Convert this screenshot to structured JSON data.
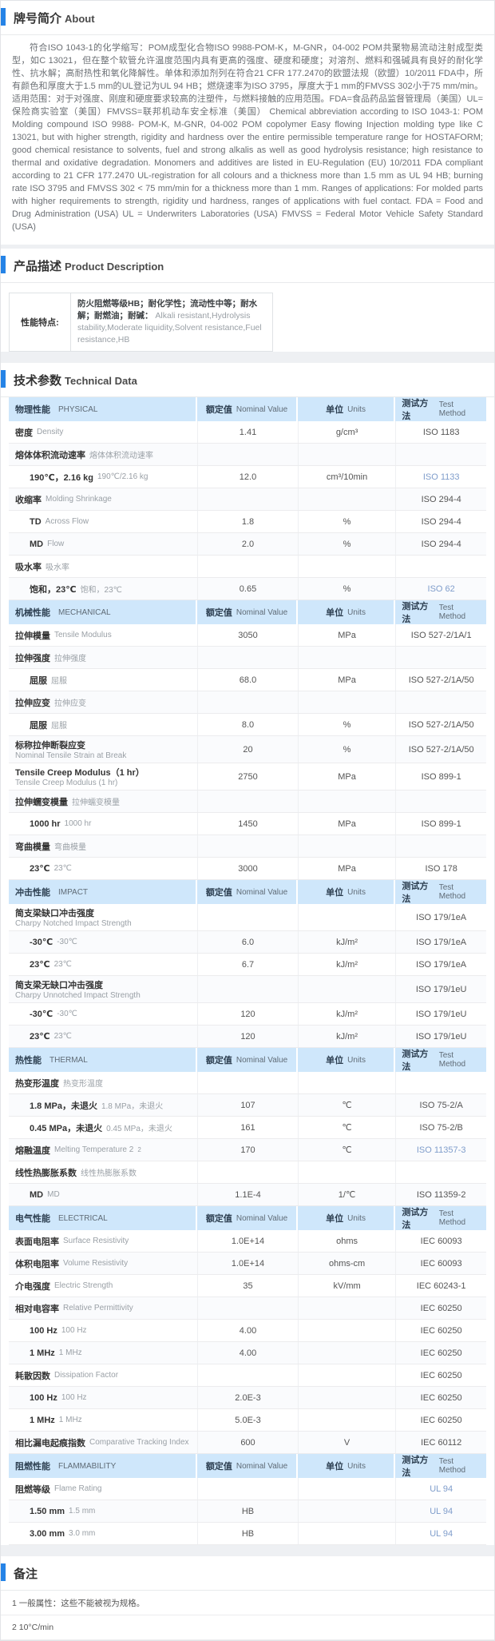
{
  "accent_color": "#2583e6",
  "table_header_bg": "#cfe7fb",
  "link_color": "#7f9dcb",
  "about": {
    "title_zh": "牌号简介",
    "title_en": "About",
    "paragraph": "符合ISO 1043-1的化学缩写：POM成型化合物ISO 9988-POM-K，M-GNR，04-002 POM共聚物易流动注射成型类型，如C 13021，但在整个软管允许温度范围内具有更高的强度、硬度和硬度；对溶剂、燃料和强碱具有良好的耐化学性、抗水解；高耐热性和氧化降解性。单体和添加剂列在符合21 CFR 177.2470的欧盟法规（欧盟）10/2011 FDA中，所有颜色和厚度大于1.5 mm的UL登记为UL 94 HB；燃烧速率为ISO 3795，厚度大于1 mm的FMVSS 302小于75 mm/min。适用范围：对于对强度、刚度和硬度要求较高的注塑件，与燃料接触的应用范围。FDA=食品药品监督管理局（美国）UL=保险商实验室（美国）FMVSS=联邦机动车安全标准（美国）  Chemical abbreviation according to ISO 1043-1: POM Molding compound ISO 9988- POM-K, M-GNR, 04-002 POM copolymer Easy flowing Injection molding type like C 13021, but with higher strength, rigidity and hardness over the entire permissible temperature range for HOSTAFORM; good chemical resistance to solvents, fuel and strong alkalis as well as good hydrolysis resistance; high resistance to thermal and oxidative degradation. Monomers and additives are listed in EU-Regulation (EU) 10/2011 FDA compliant according to 21 CFR 177.2470 UL-registration for all colours and a thickness more than 1.5 mm as UL 94 HB; burning rate ISO 3795 and FMVSS 302 < 75 mm/min for a thickness more than 1 mm. Ranges of applications: For molded parts with higher requirements to strength, rigidity und hardness, ranges of applications with fuel contact. FDA = Food and Drug Administration (USA) UL = Underwriters Laboratories (USA) FMVSS = Federal Motor Vehicle Safety Standard (USA)"
  },
  "product_description": {
    "title_zh": "产品描述",
    "title_en": "Product Description",
    "feature_label": "性能特点:",
    "feature_zh": "防火阻燃等级HB；耐化学性；流动性中等；耐水解；耐燃油；耐碱：",
    "feature_en": "Alkali resistant,Hydrolysis stability,Moderate liquidity,Solvent resistance,Fuel resistance,HB"
  },
  "technical_data": {
    "title_zh": "技术参数",
    "title_en": "Technical Data",
    "header_cols": {
      "nominal_zh": "额定值",
      "nominal_en": "Nominal Value",
      "units_zh": "单位",
      "units_en": "Units",
      "method_zh": "测试方法",
      "method_en": "Test Method"
    },
    "sections": [
      {
        "name_zh": "物理性能",
        "name_en": "PHYSICAL",
        "rows": [
          {
            "zh": "密度",
            "en": "Density",
            "indent": false,
            "value": "1.41",
            "unit": "g/cm³",
            "method": "ISO 1183",
            "link": false
          },
          {
            "zh": "熔体体积流动速率",
            "en": "熔体体积流动速率",
            "indent": false,
            "value": "",
            "unit": "",
            "method": "",
            "link": false
          },
          {
            "zh": "190℃，2.16 kg",
            "en": "190℃/2.16 kg",
            "indent": true,
            "value": "12.0",
            "unit": "cm³/10min",
            "method": "ISO 1133",
            "link": true
          },
          {
            "zh": "收缩率",
            "en": "Molding Shrinkage",
            "indent": false,
            "value": "",
            "unit": "",
            "method": "ISO 294-4",
            "link": false
          },
          {
            "zh": "TD",
            "en": "Across Flow",
            "indent": true,
            "value": "1.8",
            "unit": "%",
            "method": "ISO 294-4",
            "link": false
          },
          {
            "zh": "MD",
            "en": "Flow",
            "indent": true,
            "value": "2.0",
            "unit": "%",
            "method": "ISO 294-4",
            "link": false
          },
          {
            "zh": "吸水率",
            "en": "吸水率",
            "indent": false,
            "value": "",
            "unit": "",
            "method": "",
            "link": false
          },
          {
            "zh": "饱和，23℃",
            "en": "饱和，23℃",
            "indent": true,
            "value": "0.65",
            "unit": "%",
            "method": "ISO 62",
            "link": true
          }
        ]
      },
      {
        "name_zh": "机械性能",
        "name_en": "MECHANICAL",
        "rows": [
          {
            "zh": "拉伸模量",
            "en": "Tensile Modulus",
            "indent": false,
            "value": "3050",
            "unit": "MPa",
            "method": "ISO 527-2/1A/1",
            "link": false
          },
          {
            "zh": "拉伸强度",
            "en": "拉伸强度",
            "indent": false,
            "value": "",
            "unit": "",
            "method": "",
            "link": false
          },
          {
            "zh": "屈服",
            "en": "屈服",
            "indent": true,
            "value": "68.0",
            "unit": "MPa",
            "method": "ISO 527-2/1A/50",
            "link": false
          },
          {
            "zh": "拉伸应变",
            "en": "拉伸应变",
            "indent": false,
            "value": "",
            "unit": "",
            "method": "",
            "link": false
          },
          {
            "zh": "屈服",
            "en": "屈服",
            "indent": true,
            "value": "8.0",
            "unit": "%",
            "method": "ISO 527-2/1A/50",
            "link": false
          },
          {
            "zh": "标称拉伸断裂应变",
            "en": "Nominal Tensile Strain at Break",
            "indent": false,
            "value": "20",
            "unit": "%",
            "method": "ISO 527-2/1A/50",
            "link": false
          },
          {
            "zh": "Tensile Creep Modulus（1 hr）",
            "en": "Tensile Creep Modulus (1 hr)",
            "indent": false,
            "value": "2750",
            "unit": "MPa",
            "method": "ISO 899-1",
            "link": false
          },
          {
            "zh": "拉伸蠕变模量",
            "en": "拉伸蠕变模量",
            "indent": false,
            "value": "",
            "unit": "",
            "method": "",
            "link": false
          },
          {
            "zh": "1000 hr",
            "en": "1000 hr",
            "indent": true,
            "value": "1450",
            "unit": "MPa",
            "method": "ISO 899-1",
            "link": false
          },
          {
            "zh": "弯曲模量",
            "en": "弯曲模量",
            "indent": false,
            "value": "",
            "unit": "",
            "method": "",
            "link": false
          },
          {
            "zh": "23℃",
            "en": "23℃",
            "indent": true,
            "value": "3000",
            "unit": "MPa",
            "method": "ISO 178",
            "link": false
          }
        ]
      },
      {
        "name_zh": "冲击性能",
        "name_en": "IMPACT",
        "rows": [
          {
            "zh": "简支梁缺口冲击强度",
            "en": "Charpy Notched Impact Strength",
            "indent": false,
            "value": "",
            "unit": "",
            "method": "ISO 179/1eA",
            "link": false
          },
          {
            "zh": "-30℃",
            "en": "-30℃",
            "indent": true,
            "value": "6.0",
            "unit": "kJ/m²",
            "method": "ISO 179/1eA",
            "link": false
          },
          {
            "zh": "23℃",
            "en": "23℃",
            "indent": true,
            "value": "6.7",
            "unit": "kJ/m²",
            "method": "ISO 179/1eA",
            "link": false
          },
          {
            "zh": "简支梁无缺口冲击强度",
            "en": "Charpy Unnotched Impact Strength",
            "indent": false,
            "value": "",
            "unit": "",
            "method": "ISO 179/1eU",
            "link": false
          },
          {
            "zh": "-30℃",
            "en": "-30℃",
            "indent": true,
            "value": "120",
            "unit": "kJ/m²",
            "method": "ISO 179/1eU",
            "link": false
          },
          {
            "zh": "23℃",
            "en": "23℃",
            "indent": true,
            "value": "120",
            "unit": "kJ/m²",
            "method": "ISO 179/1eU",
            "link": false
          }
        ]
      },
      {
        "name_zh": "热性能",
        "name_en": "THERMAL",
        "rows": [
          {
            "zh": "热变形温度",
            "en": "热变形温度",
            "indent": false,
            "value": "",
            "unit": "",
            "method": "",
            "link": false
          },
          {
            "zh": "1.8 MPa，未退火",
            "en": "1.8 MPa，未退火",
            "indent": true,
            "value": "107",
            "unit": "℃",
            "method": "ISO 75-2/A",
            "link": false
          },
          {
            "zh": "0.45 MPa，未退火",
            "en": "0.45 MPa，未退火",
            "indent": true,
            "value": "161",
            "unit": "℃",
            "method": "ISO 75-2/B",
            "link": false
          },
          {
            "zh": "熔融温度",
            "en": "Melting Temperature 2",
            "sup": "2",
            "indent": false,
            "value": "170",
            "unit": "℃",
            "method": "ISO 11357-3",
            "link": true
          },
          {
            "zh": "线性热膨胀系数",
            "en": "线性热膨胀系数",
            "indent": false,
            "value": "",
            "unit": "",
            "method": "",
            "link": false
          },
          {
            "zh": "MD",
            "en": "MD",
            "indent": true,
            "value": "1.1E-4",
            "unit": "1/℃",
            "method": "ISO 11359-2",
            "link": false
          }
        ]
      },
      {
        "name_zh": "电气性能",
        "name_en": "ELECTRICAL",
        "rows": [
          {
            "zh": "表面电阻率",
            "en": "Surface Resistivity",
            "indent": false,
            "value": "1.0E+14",
            "unit": "ohms",
            "method": "IEC 60093",
            "link": false
          },
          {
            "zh": "体积电阻率",
            "en": "Volume Resistivity",
            "indent": false,
            "value": "1.0E+14",
            "unit": "ohms-cm",
            "method": "IEC 60093",
            "link": false
          },
          {
            "zh": "介电强度",
            "en": "Electric Strength",
            "indent": false,
            "value": "35",
            "unit": "kV/mm",
            "method": "IEC 60243-1",
            "link": false
          },
          {
            "zh": "相对电容率",
            "en": "Relative Permittivity",
            "indent": false,
            "value": "",
            "unit": "",
            "method": "IEC 60250",
            "link": false
          },
          {
            "zh": "100 Hz",
            "en": "100 Hz",
            "indent": true,
            "value": "4.00",
            "unit": "",
            "method": "IEC 60250",
            "link": false
          },
          {
            "zh": "1 MHz",
            "en": "1 MHz",
            "indent": true,
            "value": "4.00",
            "unit": "",
            "method": "IEC 60250",
            "link": false
          },
          {
            "zh": "耗散因数",
            "en": "Dissipation Factor",
            "indent": false,
            "value": "",
            "unit": "",
            "method": "IEC 60250",
            "link": false
          },
          {
            "zh": "100 Hz",
            "en": "100 Hz",
            "indent": true,
            "value": "2.0E-3",
            "unit": "",
            "method": "IEC 60250",
            "link": false
          },
          {
            "zh": "1 MHz",
            "en": "1 MHz",
            "indent": true,
            "value": "5.0E-3",
            "unit": "",
            "method": "IEC 60250",
            "link": false
          },
          {
            "zh": "相比漏电起痕指数",
            "en": "Comparative Tracking Index",
            "indent": false,
            "value": "600",
            "unit": "V",
            "method": "IEC 60112",
            "link": false
          }
        ]
      },
      {
        "name_zh": "阻燃性能",
        "name_en": "FLAMMABILITY",
        "rows": [
          {
            "zh": "阻燃等级",
            "en": "Flame Rating",
            "indent": false,
            "value": "",
            "unit": "",
            "method": "UL 94",
            "link": true
          },
          {
            "zh": "1.50 mm",
            "en": "1.5 mm",
            "indent": true,
            "value": "HB",
            "unit": "",
            "method": "UL 94",
            "link": true
          },
          {
            "zh": "3.00 mm",
            "en": "3.0 mm",
            "indent": true,
            "value": "HB",
            "unit": "",
            "method": "UL 94",
            "link": true
          }
        ]
      }
    ]
  },
  "notes": {
    "title_zh": "备注",
    "items": [
      "1 一般属性：这些不能被视为规格。",
      "2 10°C/min"
    ]
  }
}
